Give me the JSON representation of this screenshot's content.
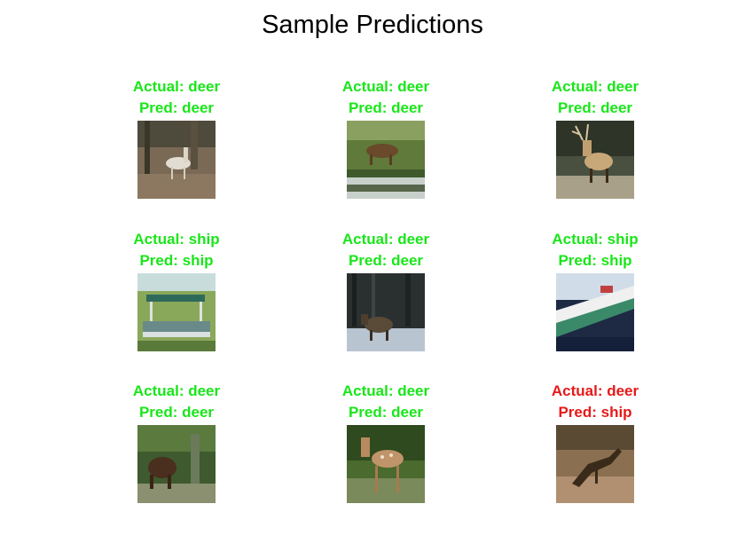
{
  "figure": {
    "title": "Sample Predictions"
  },
  "colors": {
    "correct": "#19e619",
    "incorrect": "#e61919"
  },
  "predictions": [
    {
      "actual": "Actual: deer",
      "pred": "Pred: deer",
      "correct": true,
      "image": "deer-in-forest-photo"
    },
    {
      "actual": "Actual: deer",
      "pred": "Pred: deer",
      "correct": true,
      "image": "deer-grazing-by-water-photo"
    },
    {
      "actual": "Actual: deer",
      "pred": "Pred: deer",
      "correct": true,
      "image": "antlered-deer-photo"
    },
    {
      "actual": "Actual: ship",
      "pred": "Pred: ship",
      "correct": true,
      "image": "boat-with-canopy-photo"
    },
    {
      "actual": "Actual: deer",
      "pred": "Pred: deer",
      "correct": true,
      "image": "deer-in-snowy-forest-photo"
    },
    {
      "actual": "Actual: ship",
      "pred": "Pred: ship",
      "correct": true,
      "image": "cruise-ship-photo"
    },
    {
      "actual": "Actual: deer",
      "pred": "Pred: deer",
      "correct": true,
      "image": "dark-deer-in-woods-photo"
    },
    {
      "actual": "Actual: deer",
      "pred": "Pred: deer",
      "correct": true,
      "image": "spotted-fawn-photo"
    },
    {
      "actual": "Actual: deer",
      "pred": "Pred: ship",
      "correct": false,
      "image": "leaping-deer-photo"
    }
  ]
}
